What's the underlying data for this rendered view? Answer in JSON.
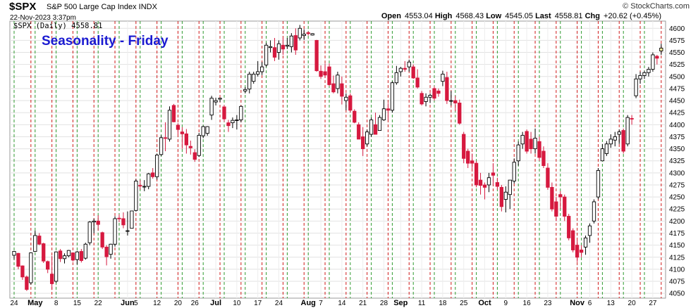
{
  "header": {
    "symbol": "$SPX",
    "description": "S&P 500 Large Cap Index INDX",
    "timestamp": "22-Nov-2023 3:37pm",
    "brand": "© StockCharts.com",
    "quote": {
      "open_label": "Open",
      "open": "4553.04",
      "high_label": "High",
      "high": "4568.43",
      "low_label": "Low",
      "low": "4545.05",
      "last_label": "Last",
      "last": "4558.81",
      "chg_label": "Chg",
      "chg": "+20.62 (+0.45%)"
    }
  },
  "chart_data": {
    "type": "candlestick",
    "title": "Seasonality - Friday",
    "legend": "$SPX (Daily) 4558.81",
    "ylim": [
      4040,
      4615
    ],
    "yticks": [
      4050,
      4075,
      4100,
      4125,
      4150,
      4175,
      4200,
      4225,
      4250,
      4275,
      4300,
      4325,
      4350,
      4375,
      4400,
      4425,
      4450,
      4475,
      4500,
      4525,
      4550,
      4575,
      4600
    ],
    "grid": true,
    "vertical_markers": {
      "green": "Monday",
      "red": "Friday"
    },
    "colors": {
      "up": "#ffffff",
      "down": "#d6193f",
      "outline": "#000000",
      "green_line": "#2e9a2e",
      "red_line": "#d01818",
      "title": "#1a1ad1"
    },
    "xticks": [
      {
        "label": "24",
        "i": 0
      },
      {
        "label": "May",
        "i": 5,
        "bold": true
      },
      {
        "label": "8",
        "i": 10
      },
      {
        "label": "15",
        "i": 15
      },
      {
        "label": "22",
        "i": 20
      },
      {
        "label": "Jun",
        "i": 27,
        "bold": true
      },
      {
        "label": "5",
        "i": 29
      },
      {
        "label": "12",
        "i": 34
      },
      {
        "label": "20",
        "i": 39
      },
      {
        "label": "26",
        "i": 43
      },
      {
        "label": "Jul",
        "i": 48,
        "bold": true
      },
      {
        "label": "10",
        "i": 53
      },
      {
        "label": "17",
        "i": 58
      },
      {
        "label": "24",
        "i": 63
      },
      {
        "label": "Aug",
        "i": 70,
        "bold": true
      },
      {
        "label": "7",
        "i": 73
      },
      {
        "label": "14",
        "i": 78
      },
      {
        "label": "21",
        "i": 83
      },
      {
        "label": "28",
        "i": 88
      },
      {
        "label": "Sep",
        "i": 92,
        "bold": true
      },
      {
        "label": "11",
        "i": 97
      },
      {
        "label": "18",
        "i": 102
      },
      {
        "label": "25",
        "i": 107
      },
      {
        "label": "Oct",
        "i": 112,
        "bold": true
      },
      {
        "label": "9",
        "i": 117
      },
      {
        "label": "16",
        "i": 122
      },
      {
        "label": "23",
        "i": 127
      },
      {
        "label": "Nov",
        "i": 134,
        "bold": true
      },
      {
        "label": "6",
        "i": 137
      },
      {
        "label": "13",
        "i": 142
      },
      {
        "label": "20",
        "i": 147
      },
      {
        "label": "27",
        "i": 152
      }
    ],
    "candles": [
      {
        "o": 4129,
        "h": 4138,
        "l": 4120,
        "c": 4137
      },
      {
        "o": 4133,
        "h": 4134,
        "l": 4100,
        "c": 4106
      },
      {
        "o": 4107,
        "h": 4108,
        "l": 4078,
        "c": 4084
      },
      {
        "o": 4084,
        "h": 4087,
        "l": 4055,
        "c": 4058
      },
      {
        "o": 4072,
        "h": 4135,
        "l": 4068,
        "c": 4134
      },
      {
        "o": 4137,
        "h": 4180,
        "l": 4136,
        "c": 4170
      },
      {
        "o": 4169,
        "h": 4175,
        "l": 4150,
        "c": 4152
      },
      {
        "o": 4153,
        "h": 4155,
        "l": 4113,
        "c": 4117
      },
      {
        "o": 4116,
        "h": 4118,
        "l": 4092,
        "c": 4100
      },
      {
        "o": 4090,
        "h": 4128,
        "l": 4057,
        "c": 4070
      },
      {
        "o": 4075,
        "h": 4137,
        "l": 4072,
        "c": 4136
      },
      {
        "o": 4138,
        "h": 4142,
        "l": 4115,
        "c": 4122
      },
      {
        "o": 4122,
        "h": 4133,
        "l": 4112,
        "c": 4128
      },
      {
        "o": 4128,
        "h": 4140,
        "l": 4125,
        "c": 4139
      },
      {
        "o": 4134,
        "h": 4135,
        "l": 4116,
        "c": 4119
      },
      {
        "o": 4120,
        "h": 4138,
        "l": 4110,
        "c": 4136
      },
      {
        "o": 4137,
        "h": 4142,
        "l": 4114,
        "c": 4118
      },
      {
        "o": 4123,
        "h": 4155,
        "l": 4120,
        "c": 4152
      },
      {
        "o": 4155,
        "h": 4200,
        "l": 4150,
        "c": 4198
      },
      {
        "o": 4198,
        "h": 4205,
        "l": 4175,
        "c": 4200
      },
      {
        "o": 4200,
        "h": 4212,
        "l": 4180,
        "c": 4193
      },
      {
        "o": 4176,
        "h": 4178,
        "l": 4142,
        "c": 4146
      },
      {
        "o": 4146,
        "h": 4150,
        "l": 4108,
        "c": 4126
      },
      {
        "o": 4131,
        "h": 4153,
        "l": 4122,
        "c": 4152
      },
      {
        "o": 4152,
        "h": 4210,
        "l": 4147,
        "c": 4205
      },
      {
        "o": 4206,
        "h": 4214,
        "l": 4198,
        "c": 4205
      },
      {
        "o": 4205,
        "h": 4218,
        "l": 4185,
        "c": 4192
      },
      {
        "o": 4180,
        "h": 4220,
        "l": 4170,
        "c": 4180
      },
      {
        "o": 4185,
        "h": 4221,
        "l": 4185,
        "c": 4221
      },
      {
        "o": 4222,
        "h": 4287,
        "l": 4220,
        "c": 4283
      },
      {
        "o": 4274,
        "h": 4285,
        "l": 4265,
        "c": 4273
      },
      {
        "o": 4271,
        "h": 4285,
        "l": 4262,
        "c": 4272
      },
      {
        "o": 4272,
        "h": 4300,
        "l": 4266,
        "c": 4298
      },
      {
        "o": 4300,
        "h": 4310,
        "l": 4288,
        "c": 4292
      },
      {
        "o": 4292,
        "h": 4340,
        "l": 4286,
        "c": 4337
      },
      {
        "o": 4338,
        "h": 4378,
        "l": 4335,
        "c": 4373
      },
      {
        "o": 4373,
        "h": 4405,
        "l": 4345,
        "c": 4372
      },
      {
        "o": 4370,
        "h": 4438,
        "l": 4365,
        "c": 4430
      },
      {
        "o": 4440,
        "h": 4443,
        "l": 4405,
        "c": 4406
      },
      {
        "o": 4399,
        "h": 4403,
        "l": 4380,
        "c": 4390
      },
      {
        "o": 4385,
        "h": 4395,
        "l": 4350,
        "c": 4381
      },
      {
        "o": 4381,
        "h": 4391,
        "l": 4340,
        "c": 4358
      },
      {
        "o": 4355,
        "h": 4367,
        "l": 4338,
        "c": 4352
      },
      {
        "o": 4342,
        "h": 4349,
        "l": 4323,
        "c": 4328
      },
      {
        "o": 4336,
        "h": 4383,
        "l": 4333,
        "c": 4378
      },
      {
        "o": 4377,
        "h": 4398,
        "l": 4372,
        "c": 4396
      },
      {
        "o": 4382,
        "h": 4397,
        "l": 4377,
        "c": 4396
      },
      {
        "o": 4420,
        "h": 4460,
        "l": 4410,
        "c": 4455
      },
      {
        "o": 4447,
        "h": 4456,
        "l": 4440,
        "c": 4450
      },
      {
        "o": 4453,
        "h": 4456,
        "l": 4447,
        "c": 4455
      },
      {
        "o": 4437,
        "h": 4441,
        "l": 4406,
        "c": 4412
      },
      {
        "o": 4404,
        "h": 4410,
        "l": 4385,
        "c": 4398
      },
      {
        "o": 4404,
        "h": 4415,
        "l": 4393,
        "c": 4409
      },
      {
        "o": 4409,
        "h": 4420,
        "l": 4390,
        "c": 4410
      },
      {
        "o": 4410,
        "h": 4440,
        "l": 4405,
        "c": 4438
      },
      {
        "o": 4470,
        "h": 4478,
        "l": 4465,
        "c": 4473
      },
      {
        "o": 4474,
        "h": 4510,
        "l": 4465,
        "c": 4505
      },
      {
        "o": 4490,
        "h": 4510,
        "l": 4485,
        "c": 4505
      },
      {
        "o": 4505,
        "h": 4532,
        "l": 4500,
        "c": 4510
      },
      {
        "o": 4510,
        "h": 4530,
        "l": 4503,
        "c": 4520
      },
      {
        "o": 4524,
        "h": 4570,
        "l": 4520,
        "c": 4565
      },
      {
        "o": 4560,
        "h": 4575,
        "l": 4550,
        "c": 4562
      },
      {
        "o": 4560,
        "h": 4580,
        "l": 4532,
        "c": 4540
      },
      {
        "o": 4550,
        "h": 4575,
        "l": 4535,
        "c": 4568
      },
      {
        "o": 4565,
        "h": 4580,
        "l": 4545,
        "c": 4557
      },
      {
        "o": 4563,
        "h": 4580,
        "l": 4557,
        "c": 4565
      },
      {
        "o": 4562,
        "h": 4590,
        "l": 4550,
        "c": 4584
      },
      {
        "o": 4585,
        "h": 4600,
        "l": 4545,
        "c": 4555
      },
      {
        "o": 4580,
        "h": 4607,
        "l": 4575,
        "c": 4600
      },
      {
        "o": 4585,
        "h": 4598,
        "l": 4576,
        "c": 4588
      },
      {
        "o": 4591,
        "h": 4594,
        "l": 4585,
        "c": 4589
      },
      {
        "o": 4586,
        "h": 4590,
        "l": 4585,
        "c": 4589
      },
      {
        "o": 4575,
        "h": 4576,
        "l": 4510,
        "c": 4512
      },
      {
        "o": 4511,
        "h": 4523,
        "l": 4495,
        "c": 4500
      },
      {
        "o": 4510,
        "h": 4527,
        "l": 4497,
        "c": 4503
      },
      {
        "o": 4520,
        "h": 4527,
        "l": 4480,
        "c": 4483
      },
      {
        "o": 4485,
        "h": 4502,
        "l": 4465,
        "c": 4468
      },
      {
        "o": 4475,
        "h": 4510,
        "l": 4465,
        "c": 4503
      },
      {
        "o": 4485,
        "h": 4500,
        "l": 4442,
        "c": 4459
      },
      {
        "o": 4450,
        "h": 4465,
        "l": 4430,
        "c": 4457
      },
      {
        "o": 4460,
        "h": 4465,
        "l": 4425,
        "c": 4430
      },
      {
        "o": 4428,
        "h": 4432,
        "l": 4403,
        "c": 4405
      },
      {
        "o": 4400,
        "h": 4405,
        "l": 4370,
        "c": 4370
      },
      {
        "o": 4375,
        "h": 4395,
        "l": 4335,
        "c": 4350
      },
      {
        "o": 4360,
        "h": 4390,
        "l": 4355,
        "c": 4385
      },
      {
        "o": 4380,
        "h": 4415,
        "l": 4375,
        "c": 4410
      },
      {
        "o": 4400,
        "h": 4425,
        "l": 4380,
        "c": 4380
      },
      {
        "o": 4388,
        "h": 4420,
        "l": 4388,
        "c": 4415
      },
      {
        "o": 4410,
        "h": 4452,
        "l": 4408,
        "c": 4433
      },
      {
        "o": 4433,
        "h": 4445,
        "l": 4410,
        "c": 4430
      },
      {
        "o": 4430,
        "h": 4490,
        "l": 4425,
        "c": 4487
      },
      {
        "o": 4487,
        "h": 4522,
        "l": 4483,
        "c": 4508
      },
      {
        "o": 4510,
        "h": 4520,
        "l": 4500,
        "c": 4517
      },
      {
        "o": 4517,
        "h": 4532,
        "l": 4510,
        "c": 4515
      },
      {
        "o": 4520,
        "h": 4535,
        "l": 4510,
        "c": 4530
      },
      {
        "o": 4520,
        "h": 4525,
        "l": 4495,
        "c": 4497
      },
      {
        "o": 4497,
        "h": 4515,
        "l": 4475,
        "c": 4478
      },
      {
        "o": 4465,
        "h": 4470,
        "l": 4440,
        "c": 4443
      },
      {
        "o": 4448,
        "h": 4465,
        "l": 4438,
        "c": 4457
      },
      {
        "o": 4457,
        "h": 4465,
        "l": 4445,
        "c": 4461
      },
      {
        "o": 4475,
        "h": 4480,
        "l": 4450,
        "c": 4455
      },
      {
        "o": 4470,
        "h": 4475,
        "l": 4458,
        "c": 4465
      },
      {
        "o": 4490,
        "h": 4512,
        "l": 4480,
        "c": 4505
      },
      {
        "o": 4498,
        "h": 4510,
        "l": 4443,
        "c": 4450
      },
      {
        "o": 4450,
        "h": 4470,
        "l": 4440,
        "c": 4450
      },
      {
        "o": 4450,
        "h": 4460,
        "l": 4428,
        "c": 4445
      },
      {
        "o": 4445,
        "h": 4452,
        "l": 4400,
        "c": 4403
      },
      {
        "o": 4380,
        "h": 4385,
        "l": 4320,
        "c": 4330
      },
      {
        "o": 4345,
        "h": 4350,
        "l": 4310,
        "c": 4320
      },
      {
        "o": 4325,
        "h": 4340,
        "l": 4308,
        "c": 4320
      },
      {
        "o": 4320,
        "h": 4325,
        "l": 4270,
        "c": 4275
      },
      {
        "o": 4285,
        "h": 4300,
        "l": 4255,
        "c": 4274
      },
      {
        "o": 4275,
        "h": 4280,
        "l": 4245,
        "c": 4270
      },
      {
        "o": 4275,
        "h": 4300,
        "l": 4260,
        "c": 4290
      },
      {
        "o": 4300,
        "h": 4320,
        "l": 4275,
        "c": 4295
      },
      {
        "o": 4280,
        "h": 4290,
        "l": 4265,
        "c": 4272
      },
      {
        "o": 4270,
        "h": 4275,
        "l": 4220,
        "c": 4230
      },
      {
        "o": 4245,
        "h": 4272,
        "l": 4218,
        "c": 4260
      },
      {
        "o": 4255,
        "h": 4285,
        "l": 4225,
        "c": 4285
      },
      {
        "o": 4283,
        "h": 4330,
        "l": 4278,
        "c": 4322
      },
      {
        "o": 4325,
        "h": 4365,
        "l": 4315,
        "c": 4358
      },
      {
        "o": 4360,
        "h": 4385,
        "l": 4350,
        "c": 4378
      },
      {
        "o": 4386,
        "h": 4390,
        "l": 4340,
        "c": 4345
      },
      {
        "o": 4370,
        "h": 4385,
        "l": 4340,
        "c": 4350
      },
      {
        "o": 4350,
        "h": 4392,
        "l": 4340,
        "c": 4372
      },
      {
        "o": 4365,
        "h": 4375,
        "l": 4325,
        "c": 4332
      },
      {
        "o": 4345,
        "h": 4355,
        "l": 4310,
        "c": 4315
      },
      {
        "o": 4310,
        "h": 4320,
        "l": 4265,
        "c": 4270
      },
      {
        "o": 4270,
        "h": 4280,
        "l": 4220,
        "c": 4225
      },
      {
        "o": 4240,
        "h": 4250,
        "l": 4200,
        "c": 4210
      },
      {
        "o": 4255,
        "h": 4262,
        "l": 4225,
        "c": 4250
      },
      {
        "o": 4250,
        "h": 4255,
        "l": 4200,
        "c": 4210
      },
      {
        "o": 4210,
        "h": 4215,
        "l": 4160,
        "c": 4165
      },
      {
        "o": 4180,
        "h": 4185,
        "l": 4135,
        "c": 4140
      },
      {
        "o": 4150,
        "h": 4160,
        "l": 4115,
        "c": 4125
      },
      {
        "o": 4140,
        "h": 4150,
        "l": 4125,
        "c": 4135
      },
      {
        "o": 4146,
        "h": 4170,
        "l": 4130,
        "c": 4165
      },
      {
        "o": 4170,
        "h": 4195,
        "l": 4155,
        "c": 4190
      },
      {
        "o": 4200,
        "h": 4245,
        "l": 4195,
        "c": 4240
      },
      {
        "o": 4250,
        "h": 4310,
        "l": 4245,
        "c": 4305
      },
      {
        "o": 4325,
        "h": 4360,
        "l": 4325,
        "c": 4350
      },
      {
        "o": 4340,
        "h": 4366,
        "l": 4335,
        "c": 4360
      },
      {
        "o": 4360,
        "h": 4380,
        "l": 4352,
        "c": 4370
      },
      {
        "o": 4368,
        "h": 4385,
        "l": 4355,
        "c": 4375
      },
      {
        "o": 4380,
        "h": 4390,
        "l": 4360,
        "c": 4385
      },
      {
        "o": 4388,
        "h": 4392,
        "l": 4340,
        "c": 4345
      },
      {
        "o": 4360,
        "h": 4420,
        "l": 4355,
        "c": 4415
      },
      {
        "o": 4413,
        "h": 4420,
        "l": 4400,
        "c": 4412
      },
      {
        "o": 4460,
        "h": 4505,
        "l": 4455,
        "c": 4495
      },
      {
        "o": 4495,
        "h": 4510,
        "l": 4485,
        "c": 4502
      },
      {
        "o": 4502,
        "h": 4512,
        "l": 4495,
        "c": 4508
      },
      {
        "o": 4508,
        "h": 4520,
        "l": 4500,
        "c": 4515
      },
      {
        "o": 4515,
        "h": 4550,
        "l": 4510,
        "c": 4545
      },
      {
        "o": 4542,
        "h": 4545,
        "l": 4525,
        "c": 4538
      },
      {
        "o": 4553,
        "h": 4568,
        "l": 4545,
        "c": 4559
      }
    ]
  }
}
